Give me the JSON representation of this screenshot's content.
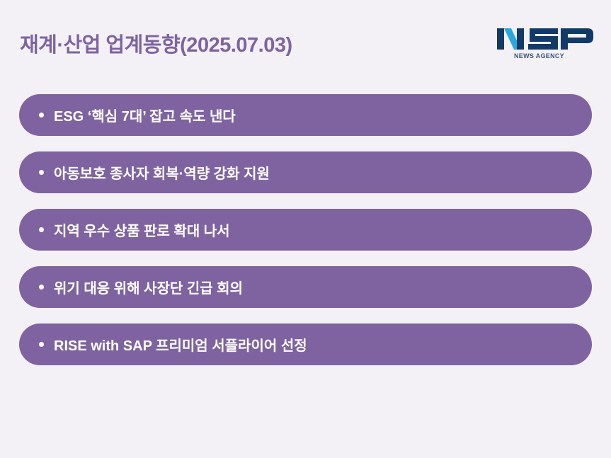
{
  "header": {
    "title": "재계·산업 업계동향(2025.07.03)"
  },
  "logo": {
    "main": "NSP",
    "sub": "NEWS AGENCY"
  },
  "colors": {
    "accent": "#7e63a0",
    "background": "#f3f1f6",
    "logo_navy": "#123a68",
    "logo_cyan": "#29a8e0"
  },
  "items": [
    {
      "label": "ESG ‘핵심 7대’ 잡고 속도 낸다"
    },
    {
      "label": "아동보호 종사자 회복·역량 강화 지원"
    },
    {
      "label": "지역 우수 상품 판로 확대 나서"
    },
    {
      "label": "위기 대응 위해 사장단 긴급 회의"
    },
    {
      "label": "RISE with SAP 프리미엄 서플라이어 선정"
    }
  ]
}
